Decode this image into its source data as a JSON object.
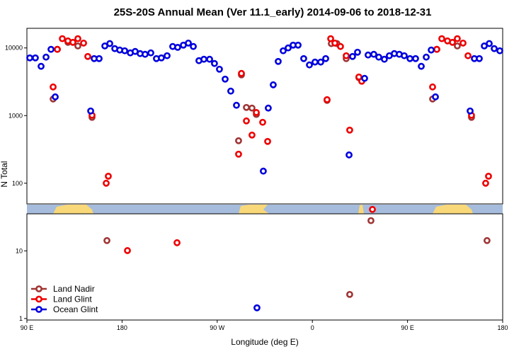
{
  "chart_data": {
    "type": "scatter",
    "title": "25S-20S Annual Mean (Ver 11.1_early)   2014-09-06 to 2018-12-31",
    "xlabel": "Longitude (deg E)",
    "ylabel": "N Total",
    "xlim": [
      90,
      540
    ],
    "xticks": [
      {
        "value": 90,
        "label": "90 E"
      },
      {
        "value": 180,
        "label": "180"
      },
      {
        "value": 270,
        "label": "90 W"
      },
      {
        "value": 360,
        "label": "0"
      },
      {
        "value": 450,
        "label": "90 E"
      },
      {
        "value": 540,
        "label": "180"
      }
    ],
    "ylim": [
      0.95,
      19500
    ],
    "yscale": "log",
    "yticks": [
      1,
      10,
      100,
      1000,
      10000
    ],
    "legend": "lower left",
    "series": [
      {
        "name": "Land Nadir",
        "color": "#a03535",
        "x": [
          114.8,
          118.8,
          128.8,
          138.2,
          151.6,
          165.7,
          290.2,
          292.9,
          297.6,
          302.9,
          307.0,
          373.9,
          377.9,
          383.3,
          392.0,
          395.3,
          404.0,
          415.4,
          473.7,
          477.7,
          497.1,
          510.5,
          525.2
        ],
        "values": [
          1760,
          9530,
          12100,
          10700,
          942,
          14.2,
          425,
          4000,
          1320,
          1290,
          1040,
          1680,
          11600,
          11600,
          6960,
          2.27,
          3630,
          28,
          1760,
          9530,
          10700,
          942,
          14.2
        ]
      },
      {
        "name": "Land Glint",
        "color": "#ee0000",
        "x": [
          114.8,
          118.8,
          123.5,
          128.8,
          133.5,
          138.2,
          143.6,
          147.6,
          151.6,
          165.0,
          167.0,
          185.1,
          232.0,
          290.2,
          292.9,
          297.6,
          302.9,
          307.0,
          313.0,
          317.7,
          373.9,
          377.3,
          381.3,
          386.6,
          392.0,
          395.3,
          404.0,
          406.7,
          416.8,
          473.7,
          477.7,
          482.4,
          487.8,
          492.5,
          497.1,
          502.5,
          507.2,
          510.5,
          523.9,
          526.6
        ],
        "values": [
          2650,
          9530,
          13700,
          12700,
          12100,
          13700,
          11800,
          7480,
          1010,
          100,
          127,
          10.1,
          13.2,
          269,
          4200,
          834,
          515,
          1110,
          796,
          415,
          1720,
          13700,
          11800,
          10500,
          7670,
          610,
          3720,
          3220,
          41,
          2650,
          9530,
          13700,
          12700,
          12100,
          13700,
          11800,
          7670,
          1010,
          100,
          127
        ]
      },
      {
        "name": "Ocean Glint",
        "color": "#0000dd",
        "x": [
          92.7,
          98.0,
          103.4,
          108.1,
          112.8,
          116.8,
          150.3,
          153.6,
          158.3,
          163.7,
          168.4,
          173.1,
          177.8,
          182.5,
          187.8,
          192.4,
          197.1,
          201.8,
          207.2,
          212.5,
          217.2,
          222.6,
          227.9,
          232.6,
          238.0,
          242.7,
          247.4,
          252.7,
          257.4,
          262.8,
          267.4,
          272.1,
          277.5,
          282.8,
          288.2,
          307.6,
          313.6,
          318.3,
          323.0,
          327.7,
          332.4,
          337.1,
          341.8,
          346.5,
          351.8,
          357.2,
          362.5,
          367.9,
          372.6,
          394.7,
          398.0,
          402.7,
          409.4,
          412.7,
          418.1,
          422.8,
          428.1,
          432.8,
          437.5,
          442.2,
          446.9,
          452.3,
          457.6,
          463.0,
          467.7,
          472.4,
          476.4,
          509.2,
          513.2,
          517.9,
          522.6,
          527.3,
          532.0,
          537.3
        ],
        "values": [
          7130,
          7130,
          5350,
          7310,
          9530,
          1890,
          1170,
          6960,
          6960,
          10700,
          11600,
          9770,
          9310,
          9080,
          8450,
          8870,
          8250,
          8050,
          8450,
          6960,
          7130,
          7670,
          10500,
          10200,
          11000,
          11800,
          10500,
          6480,
          6800,
          6800,
          5890,
          4850,
          3460,
          2300,
          1420,
          1.44,
          151,
          1290,
          2850,
          6320,
          9080,
          10000,
          11000,
          11000,
          6960,
          5610,
          6180,
          6180,
          6960,
          262,
          7480,
          8650,
          3550,
          7860,
          8050,
          7310,
          6800,
          7670,
          8250,
          8050,
          7670,
          6960,
          6960,
          5350,
          7310,
          9310,
          1890,
          1170,
          6960,
          6960,
          10700,
          11600,
          9770,
          9080
        ]
      }
    ]
  }
}
